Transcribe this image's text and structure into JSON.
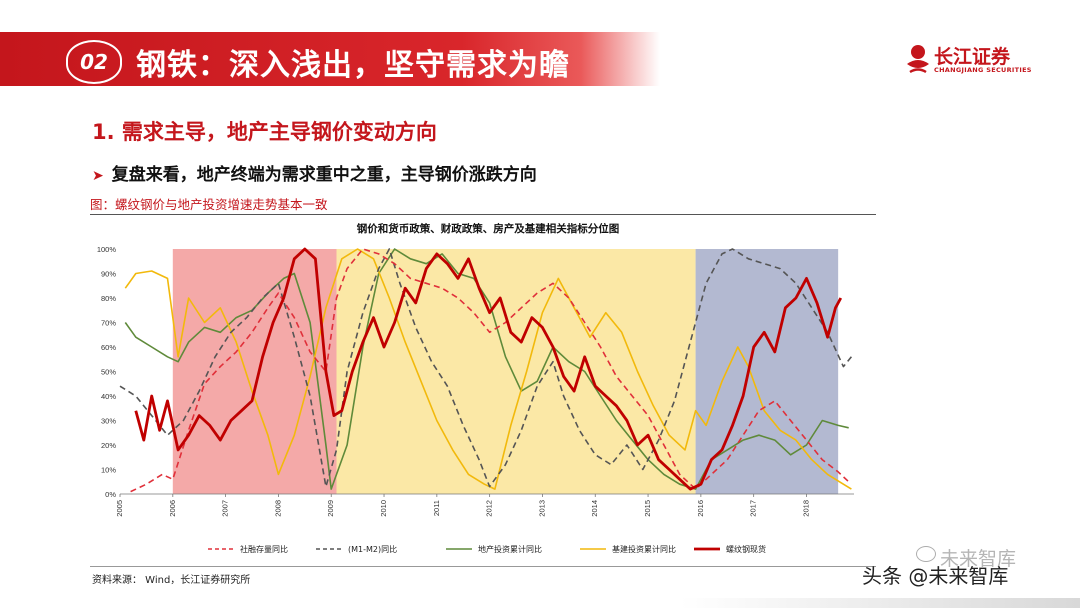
{
  "header": {
    "section_number": "02",
    "title": "钢铁：深入浅出，坚守需求为瞻",
    "logo_cn": "长江证券",
    "logo_en": "CHANGJIANG SECURITIES"
  },
  "heading": "1. 需求主导，地产主导钢价变动方向",
  "bullet": "复盘来看，地产终端为需求重中之重，主导钢价涨跌方向",
  "figure_caption": "图：螺纹钢价与地产投资增速走势基本一致",
  "source": "资料来源： Wind，长江证券研究所",
  "watermark": {
    "main": "头条 @未来智库",
    "faint": "未来智库"
  },
  "colors": {
    "brand_red": "#c4161c",
    "shade_pink": "#f4a9a8",
    "shade_yellow": "#fbe8a6",
    "shade_blue": "#b3b9d1"
  },
  "chart_data": {
    "type": "line",
    "title": "钢价和货币政策、财政政策、房产及基建相关指标分位图",
    "ylim": [
      0,
      100
    ],
    "xlim": [
      2005,
      2018.9
    ],
    "x_tick_labels": [
      "2005",
      "2006",
      "2007",
      "2008",
      "2009",
      "2010",
      "2011",
      "2012",
      "2013",
      "2014",
      "2015",
      "2016",
      "2017",
      "2018"
    ],
    "y_tick_labels": [
      "0%",
      "10%",
      "20%",
      "30%",
      "40%",
      "50%",
      "60%",
      "70%",
      "80%",
      "90%",
      "100%"
    ],
    "shaded_periods": [
      {
        "start": 2006.0,
        "end": 2009.1,
        "color": "#f4a9a8"
      },
      {
        "start": 2009.1,
        "end": 2015.9,
        "color": "#fbe8a6"
      },
      {
        "start": 2015.9,
        "end": 2018.6,
        "color": "#b3b9d1"
      }
    ],
    "legend": [
      "社融存量同比",
      "(M1-M2)同比",
      "地产投资累计同比",
      "基建投资累计同比",
      "螺纹钢现货"
    ],
    "series": [
      {
        "name": "社融存量同比",
        "color": "#e0303a",
        "dash": "6,4",
        "width": 1.6,
        "points": [
          [
            2005.2,
            1
          ],
          [
            2005.5,
            4
          ],
          [
            2005.8,
            8
          ],
          [
            2006.0,
            6
          ],
          [
            2006.3,
            26
          ],
          [
            2006.6,
            45
          ],
          [
            2006.9,
            52
          ],
          [
            2007.2,
            58
          ],
          [
            2007.5,
            66
          ],
          [
            2007.8,
            76
          ],
          [
            2008.0,
            82
          ],
          [
            2008.3,
            72
          ],
          [
            2008.6,
            58
          ],
          [
            2008.9,
            50
          ],
          [
            2009.1,
            80
          ],
          [
            2009.3,
            92
          ],
          [
            2009.6,
            100
          ],
          [
            2009.9,
            98
          ],
          [
            2010.2,
            94
          ],
          [
            2010.5,
            88
          ],
          [
            2010.8,
            86
          ],
          [
            2011.1,
            84
          ],
          [
            2011.4,
            80
          ],
          [
            2011.7,
            74
          ],
          [
            2012.0,
            66
          ],
          [
            2012.3,
            70
          ],
          [
            2012.6,
            76
          ],
          [
            2012.9,
            82
          ],
          [
            2013.2,
            86
          ],
          [
            2013.5,
            80
          ],
          [
            2013.8,
            70
          ],
          [
            2014.1,
            60
          ],
          [
            2014.4,
            48
          ],
          [
            2014.7,
            40
          ],
          [
            2015.0,
            32
          ],
          [
            2015.3,
            20
          ],
          [
            2015.6,
            8
          ],
          [
            2015.9,
            2
          ],
          [
            2016.2,
            8
          ],
          [
            2016.5,
            14
          ],
          [
            2016.8,
            24
          ],
          [
            2017.1,
            34
          ],
          [
            2017.4,
            38
          ],
          [
            2017.7,
            30
          ],
          [
            2018.0,
            22
          ],
          [
            2018.3,
            14
          ],
          [
            2018.6,
            9
          ],
          [
            2018.8,
            5
          ]
        ]
      },
      {
        "name": "(M1-M2)同比",
        "color": "#555555",
        "dash": "6,4",
        "width": 1.6,
        "points": [
          [
            2005.0,
            44
          ],
          [
            2005.3,
            40
          ],
          [
            2005.6,
            32
          ],
          [
            2005.9,
            24
          ],
          [
            2006.2,
            30
          ],
          [
            2006.5,
            42
          ],
          [
            2006.8,
            56
          ],
          [
            2007.1,
            66
          ],
          [
            2007.4,
            72
          ],
          [
            2007.7,
            80
          ],
          [
            2008.0,
            86
          ],
          [
            2008.3,
            64
          ],
          [
            2008.6,
            40
          ],
          [
            2008.9,
            3
          ],
          [
            2009.1,
            18
          ],
          [
            2009.3,
            50
          ],
          [
            2009.6,
            74
          ],
          [
            2009.9,
            92
          ],
          [
            2010.1,
            100
          ],
          [
            2010.3,
            86
          ],
          [
            2010.6,
            68
          ],
          [
            2010.9,
            54
          ],
          [
            2011.2,
            44
          ],
          [
            2011.5,
            28
          ],
          [
            2011.8,
            14
          ],
          [
            2012.0,
            3
          ],
          [
            2012.3,
            12
          ],
          [
            2012.6,
            26
          ],
          [
            2012.9,
            44
          ],
          [
            2013.2,
            54
          ],
          [
            2013.4,
            40
          ],
          [
            2013.7,
            26
          ],
          [
            2014.0,
            16
          ],
          [
            2014.3,
            12
          ],
          [
            2014.6,
            20
          ],
          [
            2014.9,
            10
          ],
          [
            2015.2,
            22
          ],
          [
            2015.5,
            38
          ],
          [
            2015.8,
            62
          ],
          [
            2016.1,
            86
          ],
          [
            2016.4,
            98
          ],
          [
            2016.6,
            100
          ],
          [
            2016.9,
            96
          ],
          [
            2017.2,
            94
          ],
          [
            2017.5,
            92
          ],
          [
            2017.8,
            86
          ],
          [
            2018.1,
            76
          ],
          [
            2018.4,
            66
          ],
          [
            2018.7,
            52
          ],
          [
            2018.85,
            56
          ]
        ]
      },
      {
        "name": "地产投资累计同比",
        "color": "#5f8a3a",
        "dash": "",
        "width": 1.6,
        "points": [
          [
            2005.1,
            70
          ],
          [
            2005.3,
            64
          ],
          [
            2005.6,
            60
          ],
          [
            2005.9,
            56
          ],
          [
            2006.1,
            54
          ],
          [
            2006.3,
            62
          ],
          [
            2006.6,
            68
          ],
          [
            2006.9,
            66
          ],
          [
            2007.2,
            72
          ],
          [
            2007.5,
            75
          ],
          [
            2007.8,
            82
          ],
          [
            2008.1,
            88
          ],
          [
            2008.3,
            90
          ],
          [
            2008.6,
            70
          ],
          [
            2008.9,
            20
          ],
          [
            2009.0,
            2
          ],
          [
            2009.3,
            20
          ],
          [
            2009.6,
            60
          ],
          [
            2009.9,
            90
          ],
          [
            2010.2,
            100
          ],
          [
            2010.5,
            96
          ],
          [
            2010.8,
            94
          ],
          [
            2011.1,
            98
          ],
          [
            2011.4,
            90
          ],
          [
            2011.7,
            88
          ],
          [
            2012.0,
            78
          ],
          [
            2012.3,
            56
          ],
          [
            2012.6,
            42
          ],
          [
            2012.9,
            46
          ],
          [
            2013.2,
            60
          ],
          [
            2013.5,
            54
          ],
          [
            2013.8,
            50
          ],
          [
            2014.1,
            40
          ],
          [
            2014.4,
            30
          ],
          [
            2014.7,
            22
          ],
          [
            2015.0,
            14
          ],
          [
            2015.3,
            8
          ],
          [
            2015.6,
            4
          ],
          [
            2015.9,
            2
          ],
          [
            2016.2,
            14
          ],
          [
            2016.5,
            18
          ],
          [
            2016.8,
            22
          ],
          [
            2017.1,
            24
          ],
          [
            2017.4,
            22
          ],
          [
            2017.7,
            16
          ],
          [
            2018.0,
            20
          ],
          [
            2018.3,
            30
          ],
          [
            2018.6,
            28
          ],
          [
            2018.8,
            27
          ]
        ]
      },
      {
        "name": "基建投资累计同比",
        "color": "#f2b90c",
        "dash": "",
        "width": 1.6,
        "points": [
          [
            2005.1,
            84
          ],
          [
            2005.3,
            90
          ],
          [
            2005.6,
            91
          ],
          [
            2005.9,
            88
          ],
          [
            2006.1,
            56
          ],
          [
            2006.3,
            80
          ],
          [
            2006.6,
            70
          ],
          [
            2006.9,
            76
          ],
          [
            2007.2,
            62
          ],
          [
            2007.5,
            42
          ],
          [
            2007.8,
            24
          ],
          [
            2008.0,
            8
          ],
          [
            2008.3,
            24
          ],
          [
            2008.6,
            48
          ],
          [
            2008.9,
            76
          ],
          [
            2009.2,
            96
          ],
          [
            2009.5,
            100
          ],
          [
            2009.8,
            96
          ],
          [
            2010.1,
            80
          ],
          [
            2010.4,
            62
          ],
          [
            2010.7,
            46
          ],
          [
            2011.0,
            30
          ],
          [
            2011.3,
            18
          ],
          [
            2011.6,
            8
          ],
          [
            2011.9,
            4
          ],
          [
            2012.1,
            2
          ],
          [
            2012.4,
            28
          ],
          [
            2012.7,
            50
          ],
          [
            2013.0,
            74
          ],
          [
            2013.3,
            88
          ],
          [
            2013.6,
            76
          ],
          [
            2013.9,
            64
          ],
          [
            2014.2,
            74
          ],
          [
            2014.5,
            66
          ],
          [
            2014.8,
            50
          ],
          [
            2015.1,
            36
          ],
          [
            2015.4,
            24
          ],
          [
            2015.7,
            18
          ],
          [
            2015.9,
            34
          ],
          [
            2016.1,
            28
          ],
          [
            2016.4,
            46
          ],
          [
            2016.7,
            60
          ],
          [
            2016.9,
            52
          ],
          [
            2017.2,
            34
          ],
          [
            2017.5,
            26
          ],
          [
            2017.8,
            22
          ],
          [
            2018.1,
            14
          ],
          [
            2018.4,
            8
          ],
          [
            2018.7,
            4
          ],
          [
            2018.85,
            2
          ]
        ]
      },
      {
        "name": "螺纹钢现货",
        "color": "#c00000",
        "dash": "",
        "width": 2.8,
        "points": [
          [
            2005.3,
            34
          ],
          [
            2005.45,
            22
          ],
          [
            2005.6,
            40
          ],
          [
            2005.75,
            26
          ],
          [
            2005.9,
            38
          ],
          [
            2006.1,
            18
          ],
          [
            2006.3,
            24
          ],
          [
            2006.5,
            32
          ],
          [
            2006.7,
            28
          ],
          [
            2006.9,
            22
          ],
          [
            2007.1,
            30
          ],
          [
            2007.3,
            34
          ],
          [
            2007.5,
            38
          ],
          [
            2007.7,
            56
          ],
          [
            2007.9,
            70
          ],
          [
            2008.1,
            80
          ],
          [
            2008.3,
            96
          ],
          [
            2008.5,
            100
          ],
          [
            2008.7,
            96
          ],
          [
            2008.9,
            50
          ],
          [
            2009.05,
            32
          ],
          [
            2009.2,
            34
          ],
          [
            2009.4,
            50
          ],
          [
            2009.6,
            62
          ],
          [
            2009.8,
            72
          ],
          [
            2010.0,
            60
          ],
          [
            2010.2,
            70
          ],
          [
            2010.4,
            84
          ],
          [
            2010.6,
            78
          ],
          [
            2010.8,
            92
          ],
          [
            2011.0,
            98
          ],
          [
            2011.2,
            94
          ],
          [
            2011.4,
            88
          ],
          [
            2011.6,
            96
          ],
          [
            2011.8,
            84
          ],
          [
            2012.0,
            74
          ],
          [
            2012.2,
            80
          ],
          [
            2012.4,
            66
          ],
          [
            2012.6,
            62
          ],
          [
            2012.8,
            72
          ],
          [
            2013.0,
            68
          ],
          [
            2013.2,
            60
          ],
          [
            2013.4,
            48
          ],
          [
            2013.6,
            42
          ],
          [
            2013.8,
            56
          ],
          [
            2014.0,
            44
          ],
          [
            2014.2,
            40
          ],
          [
            2014.4,
            36
          ],
          [
            2014.6,
            30
          ],
          [
            2014.8,
            20
          ],
          [
            2015.0,
            24
          ],
          [
            2015.2,
            14
          ],
          [
            2015.4,
            10
          ],
          [
            2015.6,
            6
          ],
          [
            2015.8,
            2
          ],
          [
            2016.0,
            4
          ],
          [
            2016.2,
            14
          ],
          [
            2016.4,
            18
          ],
          [
            2016.6,
            28
          ],
          [
            2016.8,
            40
          ],
          [
            2017.0,
            60
          ],
          [
            2017.2,
            66
          ],
          [
            2017.4,
            58
          ],
          [
            2017.6,
            76
          ],
          [
            2017.8,
            80
          ],
          [
            2018.0,
            88
          ],
          [
            2018.2,
            78
          ],
          [
            2018.4,
            64
          ],
          [
            2018.55,
            76
          ],
          [
            2018.65,
            80
          ]
        ]
      }
    ]
  }
}
